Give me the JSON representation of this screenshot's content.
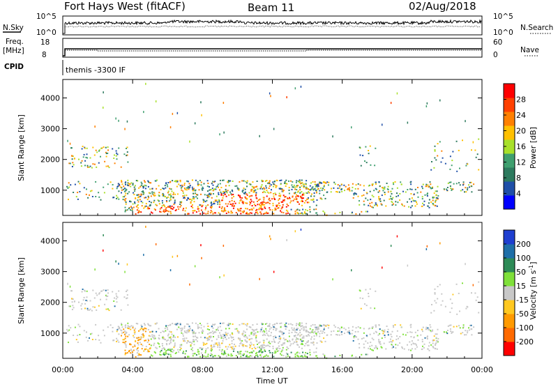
{
  "header": {
    "title": "Fort Hays West (fitACF)",
    "beam": "Beam 11",
    "date": "02/Aug/2018"
  },
  "colors": {
    "power_scale": [
      "#0000ff",
      "#1f4fa8",
      "#2d7a5e",
      "#3f9f6f",
      "#a8e02a",
      "#ffc000",
      "#ff8000",
      "#ff4000",
      "#ff0000"
    ],
    "velocity_scale": [
      "#ff0000",
      "#ff6a00",
      "#ff9a00",
      "#ffc820",
      "#c8c8c8",
      "#7fe03a",
      "#2e8b57",
      "#1f6fa8",
      "#1f3fd0"
    ]
  },
  "chart_data": [
    {
      "type": "line",
      "name": "nsky-panel",
      "left_label": "N.Sky",
      "right_label": "N.Search",
      "left_ticks": [
        "10^5",
        "10^0"
      ],
      "right_ticks": [
        "10^5",
        "10^0"
      ]
    },
    {
      "type": "line",
      "name": "freq-panel",
      "left_label_1": "Freq.",
      "left_label_2": "[MHz]",
      "right_label": "Nave",
      "left_ticks": [
        "18",
        "8"
      ],
      "right_ticks": [
        "60",
        "0"
      ]
    },
    {
      "type": "table",
      "name": "cpid-panel",
      "label": "CPID",
      "text": "themis  -3300 IF"
    },
    {
      "type": "heatmap",
      "name": "power-panel",
      "ylabel": "Slant Range [km]",
      "yticks": [
        "1000",
        "2000",
        "3000",
        "4000"
      ],
      "ylim": [
        180,
        4600
      ],
      "xlim": [
        0,
        24
      ],
      "colorbar_label": "Power [dB]",
      "colorbar_ticks": [
        "4",
        "8",
        "12",
        "16",
        "20",
        "24",
        "28"
      ],
      "colorbar_range": [
        0,
        32
      ]
    },
    {
      "type": "heatmap",
      "name": "velocity-panel",
      "ylabel": "Slant Range [km]",
      "yticks": [
        "1000",
        "2000",
        "3000",
        "4000"
      ],
      "ylim": [
        180,
        4600
      ],
      "xlim": [
        0,
        24
      ],
      "colorbar_label": "Velocity [m s",
      "colorbar_label_sup": "-1",
      "colorbar_label_end": "]",
      "colorbar_ticks": [
        "-200",
        "-100",
        "-50",
        "-15",
        "15",
        "50",
        "100",
        "200"
      ]
    },
    {
      "type": "line",
      "name": "time-axis",
      "xlabel": "Time UT",
      "xticks": [
        "00:00",
        "04:00",
        "08:00",
        "12:00",
        "16:00",
        "20:00",
        "00:00"
      ]
    }
  ]
}
